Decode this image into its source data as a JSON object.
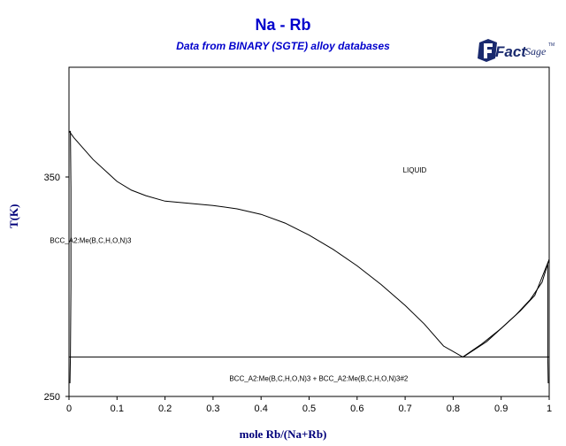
{
  "header": {
    "title": "Na - Rb",
    "subtitle": "Data from BINARY (SGTE) alloy databases",
    "logo_text_fact": "Fact",
    "logo_text_sage": "Sage",
    "logo_mark": "TM"
  },
  "colors": {
    "title": "#0000cc",
    "axis_label": "#00007a",
    "line": "#000000",
    "logo": "#1a2a6e"
  },
  "chart_data": {
    "type": "line",
    "title": "Na - Rb",
    "subtitle": "Data from BINARY (SGTE) alloy databases",
    "xlabel": "mole Rb/(Na+Rb)",
    "ylabel": "T(K)",
    "xlim": [
      0,
      1
    ],
    "ylim": [
      250,
      400
    ],
    "x_ticks": [
      "0",
      "0.1",
      "0.2",
      "0.3",
      "0.4",
      "0.5",
      "0.6",
      "0.7",
      "0.8",
      "0.9",
      "1"
    ],
    "y_ticks": [
      {
        "value": 250,
        "label": "250"
      },
      {
        "value": 350,
        "label": "350"
      }
    ],
    "grid": false,
    "series": [
      {
        "points": [
          [
            0,
            371
          ],
          [
            0.01,
            368
          ],
          [
            0.03,
            363
          ],
          [
            0.05,
            358
          ],
          [
            0.08,
            352
          ],
          [
            0.1,
            348
          ],
          [
            0.13,
            344
          ],
          [
            0.16,
            341.5
          ],
          [
            0.2,
            339
          ],
          [
            0.25,
            338
          ],
          [
            0.3,
            337
          ],
          [
            0.35,
            335.5
          ],
          [
            0.4,
            333
          ],
          [
            0.45,
            329
          ],
          [
            0.5,
            323.5
          ],
          [
            0.55,
            317
          ],
          [
            0.6,
            309.5
          ],
          [
            0.65,
            301
          ],
          [
            0.7,
            291.5
          ],
          [
            0.74,
            283
          ],
          [
            0.78,
            273
          ],
          [
            0.82,
            268
          ],
          [
            0.86,
            274
          ],
          [
            0.9,
            281
          ],
          [
            0.94,
            289
          ],
          [
            0.97,
            296
          ],
          [
            1,
            312.5
          ]
        ]
      },
      {
        "points": [
          [
            0.821,
            268
          ],
          [
            0.87,
            275
          ],
          [
            0.9,
            281
          ],
          [
            0.93,
            287
          ],
          [
            0.96,
            294
          ],
          [
            0.985,
            302
          ],
          [
            1,
            312.5
          ]
        ]
      },
      {
        "points": [
          [
            0,
            268
          ],
          [
            1,
            268
          ]
        ]
      },
      {
        "points": [
          [
            0.003,
            371
          ],
          [
            0.004,
            345
          ],
          [
            0.004,
            300
          ],
          [
            0.003,
            268
          ],
          [
            0.002,
            256
          ]
        ]
      },
      {
        "points": [
          [
            0.997,
            310
          ],
          [
            0.997,
            285
          ],
          [
            0.997,
            268
          ],
          [
            0.998,
            256
          ]
        ]
      }
    ],
    "annotations": [
      {
        "text": "LIQUID",
        "x": 0.72,
        "y": 352
      },
      {
        "text": "BCC_A2:Me(B,C,H,O,N)3",
        "x": 0.045,
        "y": 320
      },
      {
        "text": "BCC_A2:Me(B,C,H,O,N)3 + BCC_A2:Me(B,C,H,O,N)3#2",
        "x": 0.52,
        "y": 257
      }
    ]
  }
}
